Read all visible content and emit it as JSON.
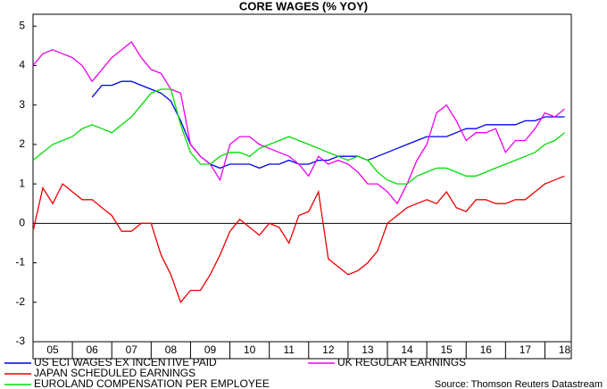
{
  "chart_data": {
    "type": "line",
    "title": "CORE WAGES (% YOY)",
    "source": "Source: Thomson Reuters Datastream",
    "legend": "bottom",
    "zero_line": true,
    "x": [
      2005,
      2005.25,
      2005.5,
      2005.75,
      2006,
      2006.25,
      2006.5,
      2006.75,
      2007,
      2007.25,
      2007.5,
      2007.75,
      2008,
      2008.25,
      2008.5,
      2008.75,
      2009,
      2009.25,
      2009.5,
      2009.75,
      2010,
      2010.25,
      2010.5,
      2010.75,
      2011,
      2011.25,
      2011.5,
      2011.75,
      2012,
      2012.25,
      2012.5,
      2012.75,
      2013,
      2013.25,
      2013.5,
      2013.75,
      2014,
      2014.25,
      2014.5,
      2014.75,
      2015,
      2015.25,
      2015.5,
      2015.75,
      2016,
      2016.25,
      2016.5,
      2016.75,
      2017,
      2017.25,
      2017.5,
      2017.75,
      2018,
      2018.25,
      2018.5
    ],
    "xlim": [
      2005,
      2018.67
    ],
    "xticks": [
      {
        "value": 2005.5,
        "label": "05"
      },
      {
        "value": 2006.5,
        "label": "06"
      },
      {
        "value": 2007.5,
        "label": "07"
      },
      {
        "value": 2008.5,
        "label": "08"
      },
      {
        "value": 2009.5,
        "label": "09"
      },
      {
        "value": 2010.5,
        "label": "10"
      },
      {
        "value": 2011.5,
        "label": "11"
      },
      {
        "value": 2012.5,
        "label": "12"
      },
      {
        "value": 2013.5,
        "label": "13"
      },
      {
        "value": 2014.5,
        "label": "14"
      },
      {
        "value": 2015.5,
        "label": "15"
      },
      {
        "value": 2016.5,
        "label": "16"
      },
      {
        "value": 2017.5,
        "label": "17"
      },
      {
        "value": 2018.5,
        "label": "18"
      }
    ],
    "ylim": [
      -3,
      5.3
    ],
    "yticks": [
      -3,
      -2,
      -1,
      0,
      1,
      2,
      3,
      4,
      5
    ],
    "series": [
      {
        "name": "US ECI WAGES EX INCENTIVE PAID",
        "color": "#0000ee",
        "values": [
          null,
          null,
          null,
          null,
          null,
          null,
          3.2,
          3.5,
          3.5,
          3.6,
          3.6,
          3.5,
          3.4,
          3.3,
          3.1,
          2.6,
          2.0,
          1.7,
          1.5,
          1.4,
          1.5,
          1.5,
          1.5,
          1.4,
          1.5,
          1.5,
          1.6,
          1.5,
          1.5,
          1.6,
          1.6,
          1.7,
          1.7,
          1.7,
          1.6,
          1.7,
          1.8,
          1.9,
          2.0,
          2.1,
          2.2,
          2.2,
          2.2,
          2.3,
          2.4,
          2.4,
          2.5,
          2.5,
          2.5,
          2.5,
          2.6,
          2.6,
          2.7,
          2.7,
          2.7
        ]
      },
      {
        "name": "UK REGULAR EARNINGS",
        "color": "#ee00ee",
        "values": [
          4.0,
          4.3,
          4.4,
          4.3,
          4.2,
          4.0,
          3.6,
          3.9,
          4.2,
          4.4,
          4.6,
          4.2,
          3.9,
          3.8,
          3.4,
          3.3,
          2.0,
          1.7,
          1.5,
          1.1,
          2.0,
          2.2,
          2.2,
          2.0,
          1.9,
          1.8,
          1.7,
          1.5,
          1.2,
          1.7,
          1.5,
          1.6,
          1.5,
          1.3,
          1.0,
          1.0,
          0.8,
          0.5,
          1.0,
          1.6,
          2.0,
          2.8,
          3.0,
          2.6,
          2.1,
          2.3,
          2.3,
          2.4,
          1.8,
          2.1,
          2.1,
          2.4,
          2.8,
          2.7,
          2.9
        ]
      },
      {
        "name": "JAPAN SCHEDULED EARNINGS",
        "color": "#ee0000",
        "values": [
          -0.2,
          0.9,
          0.5,
          1.0,
          0.8,
          0.6,
          0.6,
          0.4,
          0.2,
          -0.2,
          -0.2,
          0.0,
          0.0,
          -0.8,
          -1.3,
          -2.0,
          -1.7,
          -1.7,
          -1.3,
          -0.8,
          -0.2,
          0.1,
          -0.1,
          -0.3,
          0.0,
          -0.1,
          -0.5,
          0.2,
          0.3,
          0.8,
          -0.9,
          -1.1,
          -1.3,
          -1.2,
          -1.0,
          -0.7,
          0.0,
          0.2,
          0.4,
          0.5,
          0.6,
          0.5,
          0.8,
          0.4,
          0.3,
          0.6,
          0.6,
          0.5,
          0.5,
          0.6,
          0.6,
          0.8,
          1.0,
          1.1,
          1.2
        ]
      },
      {
        "name": "EUROLAND COMPENSATION PER EMPLOYEE",
        "color": "#00dd00",
        "values": [
          1.6,
          1.8,
          2.0,
          2.1,
          2.2,
          2.4,
          2.5,
          2.4,
          2.3,
          2.5,
          2.7,
          3.0,
          3.3,
          3.4,
          3.4,
          2.5,
          1.8,
          1.5,
          1.5,
          1.7,
          1.8,
          1.8,
          1.7,
          1.9,
          2.0,
          2.1,
          2.2,
          2.1,
          2.0,
          1.9,
          1.8,
          1.7,
          1.6,
          1.7,
          1.6,
          1.3,
          1.1,
          1.0,
          1.0,
          1.2,
          1.3,
          1.4,
          1.4,
          1.3,
          1.2,
          1.2,
          1.3,
          1.4,
          1.5,
          1.6,
          1.7,
          1.8,
          2.0,
          2.1,
          2.3
        ]
      }
    ]
  }
}
